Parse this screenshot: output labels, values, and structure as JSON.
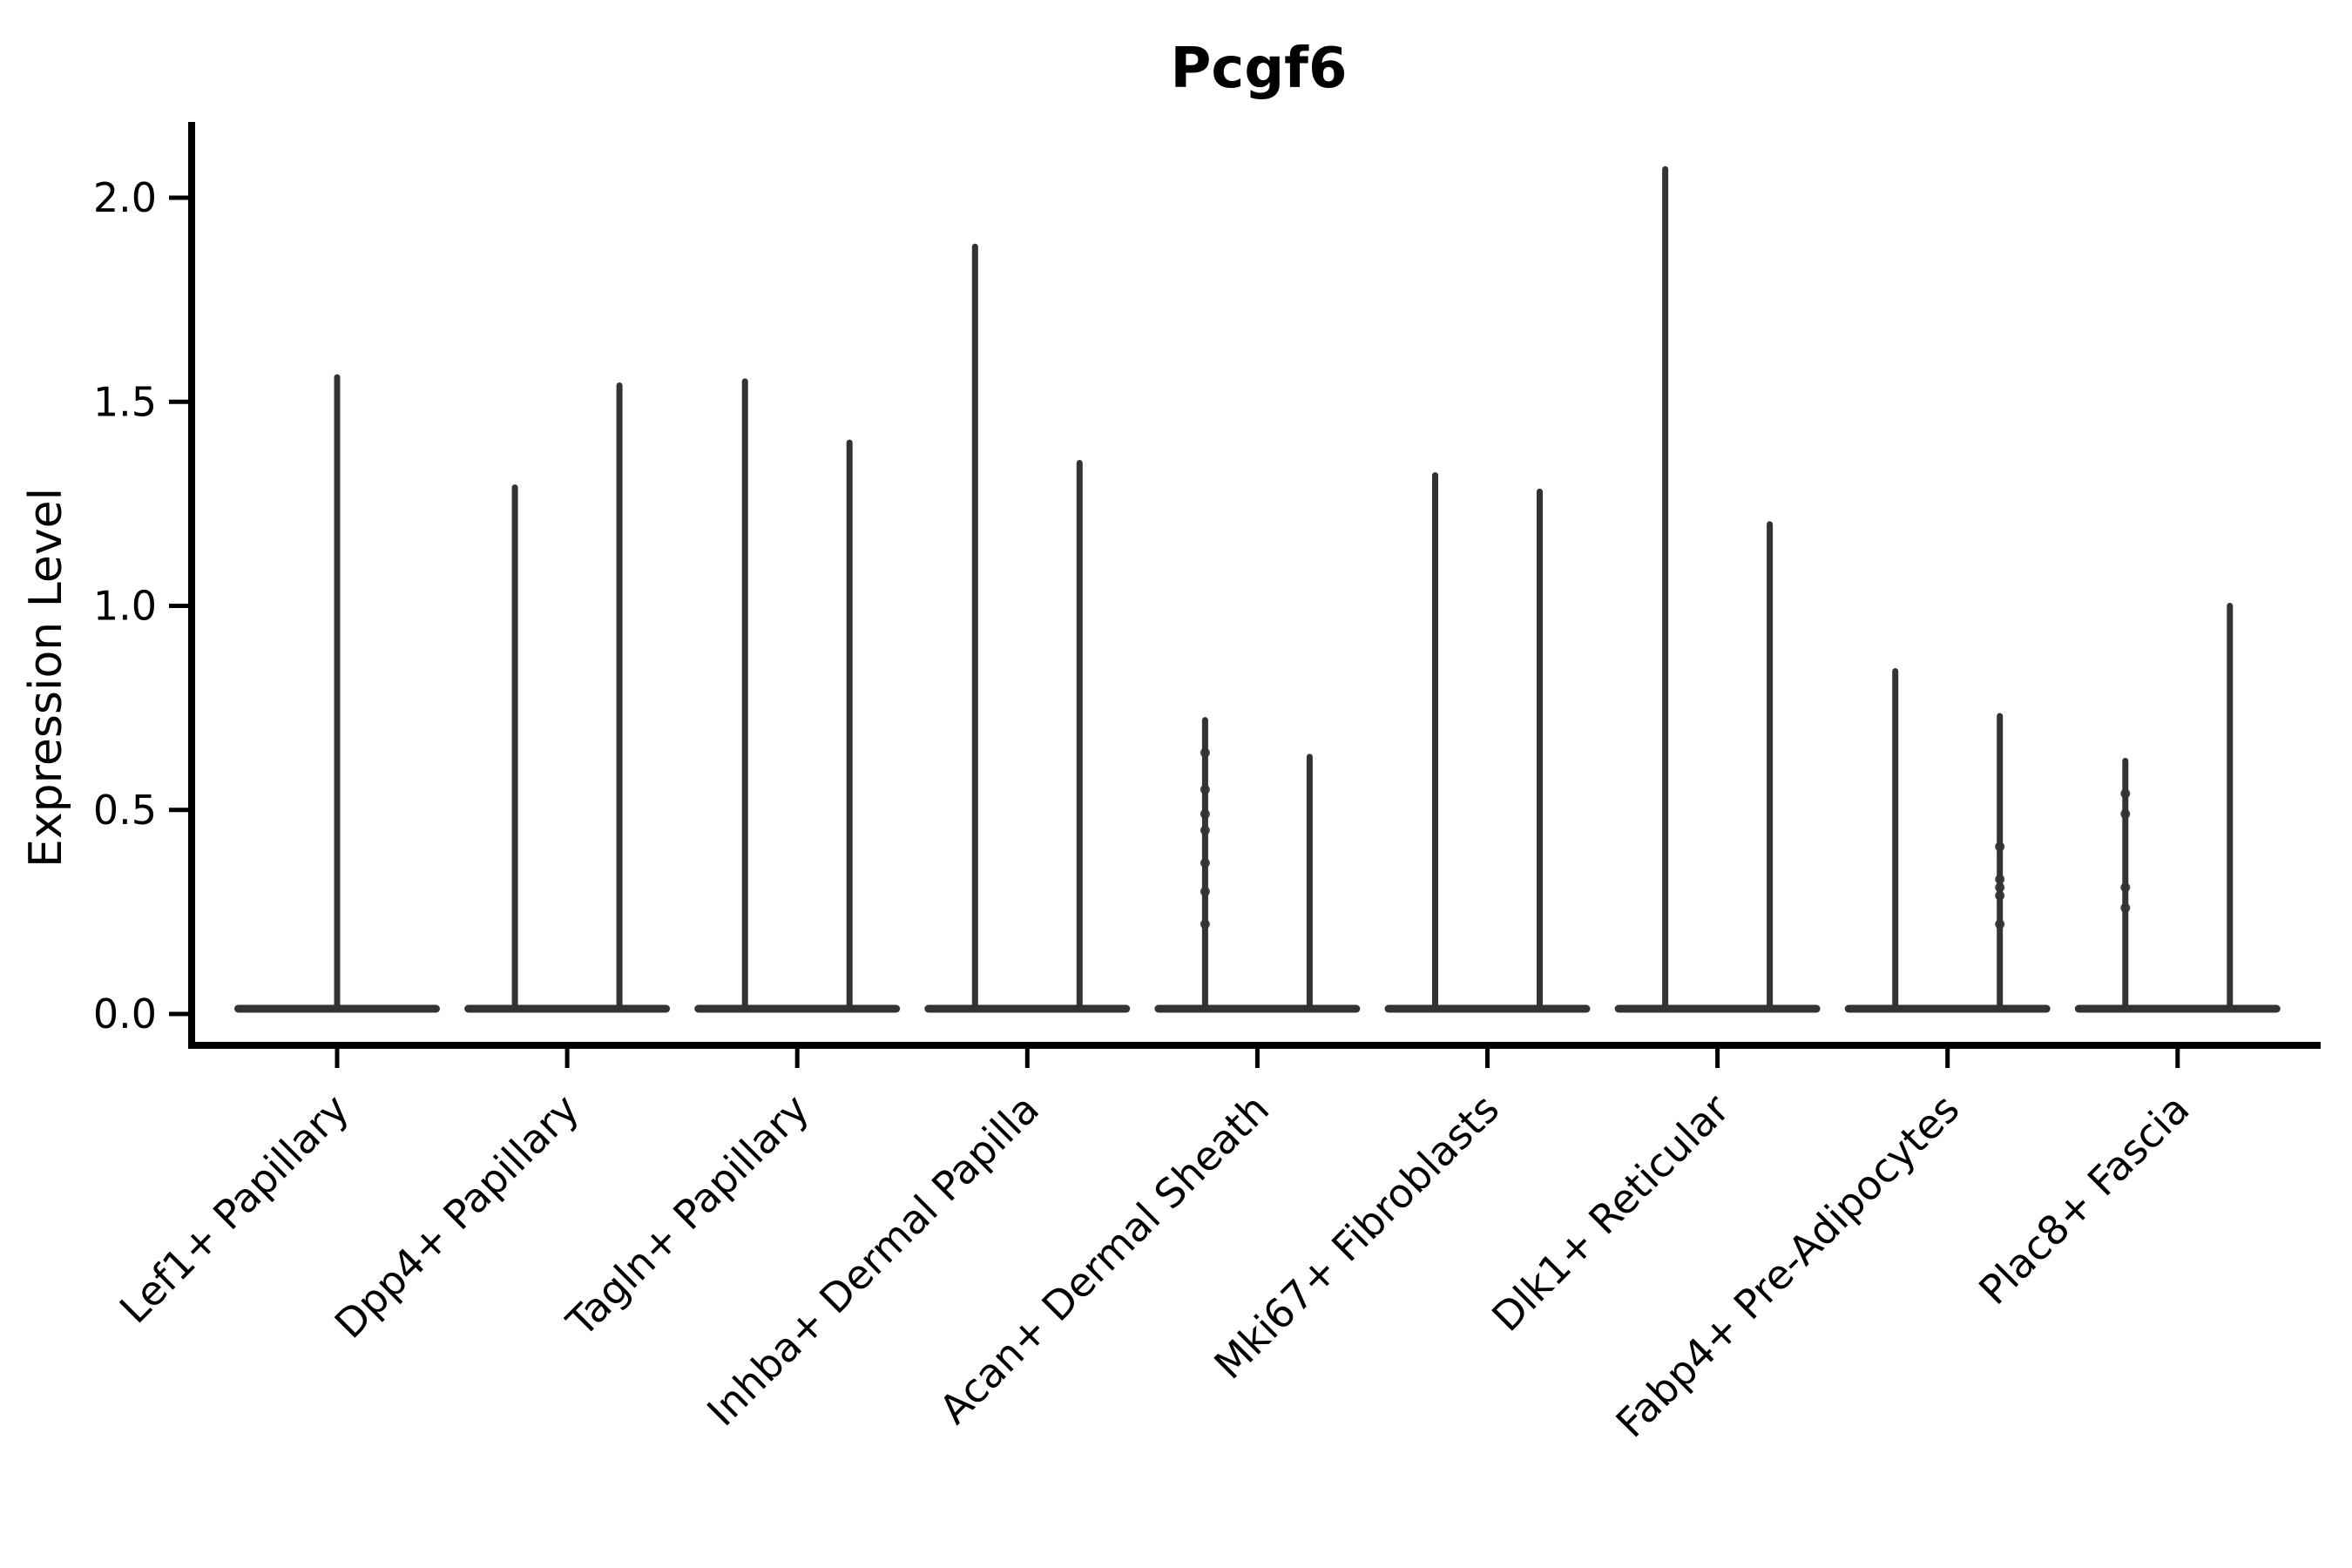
{
  "figure": {
    "background": "#ffffff"
  },
  "chart_data": {
    "type": "violin",
    "title": "Pcgf6",
    "ylabel": "Expression Level",
    "xlabel": "",
    "grid": false,
    "legend": "none",
    "ylim": [
      0,
      2.19
    ],
    "ytick_labels": [
      "0.0",
      "0.5",
      "1.0",
      "1.5",
      "2.0"
    ],
    "ytick_values": [
      0,
      0.5,
      1.0,
      1.5,
      2.0
    ],
    "categories": [
      "Lef1+ Papillary",
      "Dpp4+ Papillary",
      "Tagln+ Papillary",
      "Inhba+ Dermal Papilla",
      "Acan+ Dermal Sheath",
      "Mki67+ Fibroblasts",
      "Dlk1+ Reticular",
      "Fabp4+ Pre-Adipocytes",
      "Plac8+ Fascia"
    ],
    "violins": [
      {
        "category": "Lef1+ Papillary",
        "spikes": [
          {
            "pos": "center",
            "max": 1.56,
            "dots": []
          }
        ]
      },
      {
        "category": "Dpp4+ Papillary",
        "spikes": [
          {
            "pos": "left",
            "max": 1.29,
            "dots": []
          },
          {
            "pos": "right",
            "max": 1.54,
            "dots": []
          }
        ]
      },
      {
        "category": "Tagln+ Papillary",
        "spikes": [
          {
            "pos": "left",
            "max": 1.55,
            "dots": []
          },
          {
            "pos": "right",
            "max": 1.4,
            "dots": []
          }
        ]
      },
      {
        "category": "Inhba+ Dermal Papilla",
        "spikes": [
          {
            "pos": "left",
            "max": 1.88,
            "dots": []
          },
          {
            "pos": "right",
            "max": 1.35,
            "dots": []
          }
        ]
      },
      {
        "category": "Acan+ Dermal Sheath",
        "spikes": [
          {
            "pos": "left",
            "max": 0.72,
            "dots": [
              0.64,
              0.55,
              0.49,
              0.45,
              0.37,
              0.3,
              0.22
            ]
          },
          {
            "pos": "right",
            "max": 0.63,
            "dots": []
          }
        ]
      },
      {
        "category": "Mki67+ Fibroblasts",
        "spikes": [
          {
            "pos": "left",
            "max": 1.32,
            "dots": []
          },
          {
            "pos": "right",
            "max": 1.28,
            "dots": []
          }
        ]
      },
      {
        "category": "Dlk1+ Reticular",
        "spikes": [
          {
            "pos": "left",
            "max": 2.07,
            "dots": []
          },
          {
            "pos": "right",
            "max": 1.2,
            "dots": []
          }
        ]
      },
      {
        "category": "Fabp4+ Pre-Adipocytes",
        "spikes": [
          {
            "pos": "left",
            "max": 0.84,
            "dots": []
          },
          {
            "pos": "right",
            "max": 0.73,
            "dots": [
              0.41,
              0.33,
              0.31,
              0.29,
              0.22
            ]
          }
        ]
      },
      {
        "category": "Plac8+ Fascia",
        "spikes": [
          {
            "pos": "left",
            "max": 0.62,
            "dots": [
              0.54,
              0.49,
              0.31,
              0.26
            ]
          },
          {
            "pos": "right",
            "max": 1.0,
            "dots": []
          }
        ]
      }
    ],
    "colors": {
      "violin_stroke": "#333333",
      "axis": "#000000",
      "text": "#000000",
      "background": "#ffffff"
    }
  }
}
